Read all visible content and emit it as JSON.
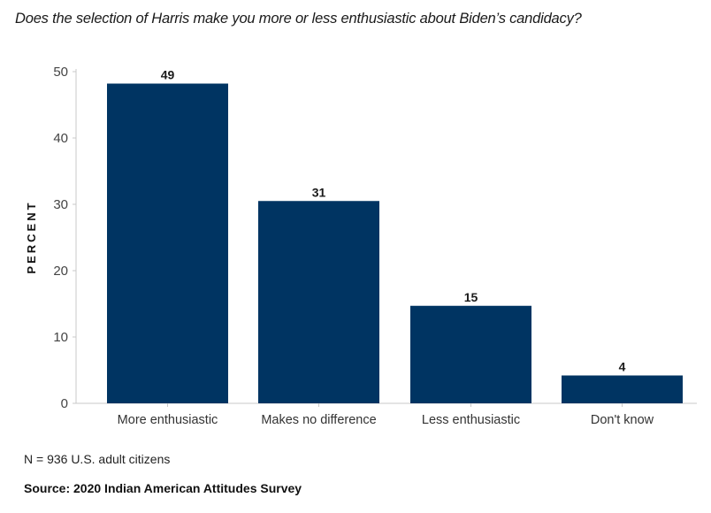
{
  "chart_data": {
    "type": "bar",
    "title": "Does the selection of Harris make you more or less enthusiastic about Biden’s candidacy?",
    "xlabel": "",
    "ylabel": "PERCENT",
    "categories": [
      "More enthusiastic",
      "Makes no difference",
      "Less enthusiastic",
      "Don't know"
    ],
    "values": [
      49,
      31,
      15,
      4
    ],
    "bar_heights_approx": [
      48.2,
      30.5,
      14.7,
      4.2
    ],
    "ylim": [
      0,
      50
    ],
    "yticks": [
      0,
      10,
      20,
      30,
      40,
      50
    ],
    "grid": false,
    "legend": "none",
    "bar_color": "#003462"
  },
  "note": "N = 936 U.S. adult citizens",
  "source": "Source: 2020 Indian American Attitudes Survey"
}
